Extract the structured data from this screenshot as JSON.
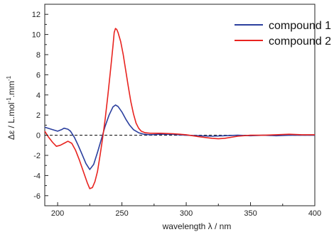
{
  "chart_data": {
    "type": "line",
    "xlabel": "wavelength λ / nm",
    "ylabel": "Δε / L.mol",
    "ylabel_sup1": "-1",
    "ylabel_mid": ".mm",
    "ylabel_sup2": "-1",
    "xlim": [
      190,
      400
    ],
    "ylim": [
      -7,
      13
    ],
    "xticks": [
      200,
      250,
      300,
      350,
      400
    ],
    "yticks": [
      -6,
      -4,
      -2,
      0,
      2,
      4,
      6,
      8,
      10,
      12
    ],
    "zero_line": "dashed",
    "grid": false,
    "legend_position": "top-right",
    "series": [
      {
        "name": "compound 1",
        "color": "#2b3f9e",
        "points": [
          [
            190,
            0.8
          ],
          [
            195,
            0.6
          ],
          [
            200,
            0.4
          ],
          [
            203,
            0.55
          ],
          [
            205,
            0.7
          ],
          [
            208,
            0.6
          ],
          [
            210,
            0.4
          ],
          [
            213,
            -0.2
          ],
          [
            216,
            -1.0
          ],
          [
            219,
            -1.9
          ],
          [
            222,
            -2.8
          ],
          [
            225,
            -3.4
          ],
          [
            228,
            -2.9
          ],
          [
            231,
            -1.7
          ],
          [
            234,
            -0.4
          ],
          [
            237,
            0.9
          ],
          [
            240,
            2.0
          ],
          [
            243,
            2.8
          ],
          [
            245,
            3.0
          ],
          [
            247,
            2.85
          ],
          [
            250,
            2.3
          ],
          [
            253,
            1.6
          ],
          [
            256,
            1.0
          ],
          [
            259,
            0.55
          ],
          [
            263,
            0.25
          ],
          [
            267,
            0.1
          ],
          [
            272,
            0.05
          ],
          [
            280,
            0.1
          ],
          [
            290,
            0.08
          ],
          [
            300,
            0.0
          ],
          [
            310,
            -0.05
          ],
          [
            320,
            -0.1
          ],
          [
            330,
            -0.05
          ],
          [
            340,
            0.0
          ],
          [
            350,
            -0.05
          ],
          [
            360,
            0.0
          ],
          [
            370,
            -0.05
          ],
          [
            380,
            0.0
          ],
          [
            390,
            0.0
          ],
          [
            400,
            0.0
          ]
        ]
      },
      {
        "name": "compound 2",
        "color": "#e8231f",
        "points": [
          [
            190,
            0.4
          ],
          [
            193,
            -0.2
          ],
          [
            196,
            -0.7
          ],
          [
            199,
            -1.1
          ],
          [
            202,
            -1.0
          ],
          [
            205,
            -0.8
          ],
          [
            208,
            -0.6
          ],
          [
            211,
            -0.8
          ],
          [
            214,
            -1.5
          ],
          [
            217,
            -2.5
          ],
          [
            220,
            -3.6
          ],
          [
            223,
            -4.7
          ],
          [
            225,
            -5.3
          ],
          [
            227,
            -5.2
          ],
          [
            229,
            -4.6
          ],
          [
            231,
            -3.6
          ],
          [
            233,
            -2.0
          ],
          [
            235,
            -0.3
          ],
          [
            237,
            1.6
          ],
          [
            239,
            3.9
          ],
          [
            241,
            6.3
          ],
          [
            243,
            8.8
          ],
          [
            244,
            10.2
          ],
          [
            245,
            10.6
          ],
          [
            246,
            10.5
          ],
          [
            247,
            10.2
          ],
          [
            249,
            9.3
          ],
          [
            251,
            8.0
          ],
          [
            253,
            6.4
          ],
          [
            255,
            4.8
          ],
          [
            257,
            3.3
          ],
          [
            259,
            2.1
          ],
          [
            261,
            1.2
          ],
          [
            263,
            0.7
          ],
          [
            265,
            0.4
          ],
          [
            268,
            0.25
          ],
          [
            272,
            0.2
          ],
          [
            280,
            0.2
          ],
          [
            290,
            0.15
          ],
          [
            300,
            0.05
          ],
          [
            310,
            -0.15
          ],
          [
            320,
            -0.3
          ],
          [
            325,
            -0.35
          ],
          [
            330,
            -0.3
          ],
          [
            340,
            -0.1
          ],
          [
            350,
            0.0
          ],
          [
            360,
            0.0
          ],
          [
            370,
            0.05
          ],
          [
            380,
            0.1
          ],
          [
            390,
            0.05
          ],
          [
            400,
            0.05
          ]
        ]
      }
    ]
  }
}
